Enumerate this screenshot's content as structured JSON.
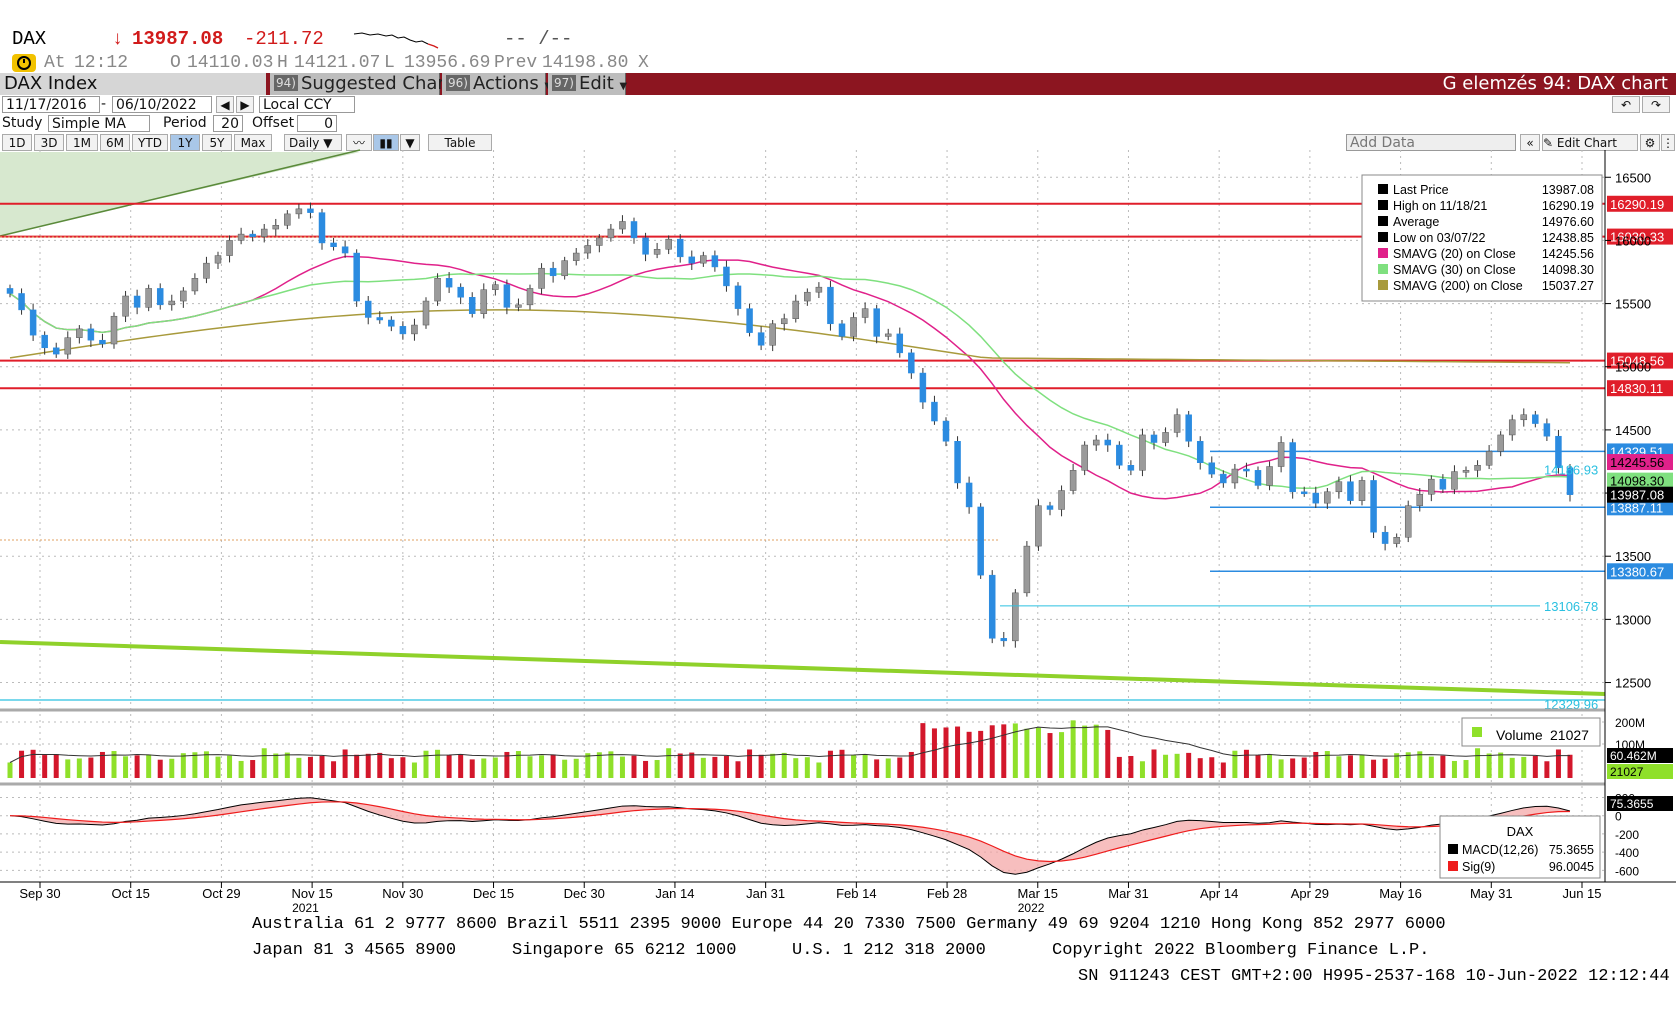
{
  "quote": {
    "ticker": "DAX",
    "arrow": "↓",
    "last": "13987.08",
    "change": "-211.72",
    "spark": "-- /--",
    "at_label": "At",
    "time": "12:12",
    "open_label": "O",
    "open": "14110.03",
    "high_label": "H",
    "high": "14121.07",
    "low_label": "L",
    "low": "13956.69",
    "prev_label": "Prev",
    "prev": "14198.80",
    "x": "X"
  },
  "toolbar": {
    "security": "DAX Index",
    "suggested_num": "94)",
    "suggested": "Suggested Charts",
    "actions_num": "96)",
    "actions": "Actions",
    "edit_num": "97)",
    "edit": "Edit",
    "title": "G elemzés 94: DAX chart"
  },
  "controls": {
    "start_date": "11/17/2016",
    "end_date": "06/10/2022",
    "currency": "Local CCY",
    "study_label": "Study",
    "study": "Simple MA",
    "period_label": "Period",
    "period": "20",
    "offset_label": "Offset",
    "offset": "0",
    "ranges": [
      "1D",
      "3D",
      "1M",
      "6M",
      "YTD",
      "1Y",
      "5Y",
      "Max"
    ],
    "selected_range": "1Y",
    "frequency": "Daily",
    "table": "Table",
    "add_data": "Add Data",
    "edit_chart": "Edit Chart"
  },
  "legend": {
    "rows": [
      {
        "label": "Last Price",
        "value": "13987.08",
        "color": "#000000"
      },
      {
        "label": "High on 11/18/21",
        "value": "16290.19",
        "color": "#000000"
      },
      {
        "label": "Average",
        "value": "14976.60",
        "color": "#000000"
      },
      {
        "label": "Low on 03/07/22",
        "value": "12438.85",
        "color": "#000000"
      },
      {
        "label": "SMAVG (20)  on Close",
        "value": "14245.56",
        "color": "#e0218a"
      },
      {
        "label": "SMAVG (30)  on Close",
        "value": "14098.30",
        "color": "#7fe07f"
      },
      {
        "label": "SMAVG (200)  on Close",
        "value": "15037.27",
        "color": "#a89a3c"
      }
    ]
  },
  "volume_legend": {
    "label": "Volume",
    "value": "21027"
  },
  "macd_legend": {
    "title": "DAX",
    "rows": [
      {
        "label": "MACD(12,26)",
        "value": "75.3655",
        "color": "#000000"
      },
      {
        "label": "Sig(9)",
        "value": "96.0045",
        "color": "#ee1c1c"
      }
    ]
  },
  "chart_data": {
    "type": "candlestick",
    "y_ticks": [
      "16500",
      "16000",
      "15500",
      "15000",
      "14500",
      "14000",
      "13500",
      "13000",
      "12500"
    ],
    "y_range": [
      12330,
      16700
    ],
    "x_ticks": [
      "Sep 30",
      "Oct 15",
      "Oct 29",
      "Nov 15",
      "Nov 30",
      "Dec 15",
      "Dec 30",
      "Jan 14",
      "Jan 31",
      "Feb 14",
      "Feb 28",
      "Mar 15",
      "Mar 31",
      "Apr 14",
      "Apr 29",
      "May 16",
      "May 31",
      "Jun 15"
    ],
    "year_labels": [
      {
        "text": "2021",
        "after": "Nov 15"
      },
      {
        "text": "2022",
        "after": "Mar 15"
      }
    ],
    "horizontal_levels": [
      {
        "label": "16290.19",
        "value": 16290.19,
        "color": "#e01e2a"
      },
      {
        "label": "16030.33",
        "value": 16030.33,
        "color": "#e01e2a"
      },
      {
        "label": "15048.56",
        "value": 15048.56,
        "color": "#e01e2a"
      },
      {
        "label": "14830.11",
        "value": 14830.11,
        "color": "#e01e2a"
      },
      {
        "label": "14329.51",
        "value": 14329.51,
        "color": "#2b8be0"
      },
      {
        "label": "13887.11",
        "value": 13887.11,
        "color": "#2b8be0"
      },
      {
        "label": "13380.67",
        "value": 13380.67,
        "color": "#2b8be0"
      }
    ],
    "right_markers": [
      {
        "label": "14245.56",
        "value": 14245.56,
        "color": "#e0218a"
      },
      {
        "label": "14098.30",
        "value": 14098.3,
        "color": "#7fe07f"
      },
      {
        "label": "13987.08",
        "value": 13987.08,
        "color": "#000000"
      }
    ],
    "annotations": [
      {
        "label": "14186.93",
        "value": 14186.93
      },
      {
        "label": "13106.78",
        "value": 13106.78
      },
      {
        "label": "12329.96",
        "value": 12329.96
      }
    ],
    "close_series": [
      15580,
      15450,
      15250,
      15150,
      15100,
      15230,
      15300,
      15210,
      15180,
      15400,
      15560,
      15470,
      15620,
      15490,
      15520,
      15600,
      15700,
      15820,
      15880,
      16000,
      16050,
      16030,
      16090,
      16120,
      16210,
      16250,
      16220,
      15980,
      15950,
      15900,
      15520,
      15390,
      15370,
      15320,
      15260,
      15330,
      15520,
      15700,
      15630,
      15550,
      15420,
      15610,
      15650,
      15470,
      15490,
      15620,
      15780,
      15720,
      15840,
      15900,
      15960,
      16020,
      16090,
      16150,
      16020,
      15890,
      15930,
      16010,
      15870,
      15820,
      15880,
      15790,
      15640,
      15460,
      15270,
      15170,
      15340,
      15380,
      15520,
      15590,
      15630,
      15340,
      15240,
      15390,
      15460,
      15240,
      15260,
      15110,
      14950,
      14720,
      14570,
      14410,
      14080,
      13890,
      13350,
      12850,
      12830,
      13210,
      13580,
      13900,
      13870,
      14020,
      14180,
      14380,
      14420,
      14380,
      14220,
      14180,
      14460,
      14400,
      14480,
      14620,
      14410,
      14240,
      14150,
      14080,
      14190,
      14180,
      14060,
      14210,
      14400,
      14010,
      14000,
      13920,
      14010,
      14090,
      13940,
      14100,
      13690,
      13600,
      13650,
      13900,
      13990,
      14110,
      14030,
      14170,
      14180,
      14220,
      14330,
      14460,
      14580,
      14620,
      14550,
      14450,
      14200,
      13987
    ],
    "volume": {
      "ticks": [
        "200M",
        "100M"
      ],
      "avg_label": "60.462M",
      "last_label": "21027"
    },
    "macd": {
      "ticks": [
        "200",
        "0",
        "-200",
        "-400",
        "-600"
      ],
      "macd_label": "75.3655"
    }
  },
  "footer": {
    "line1": "Australia 61 2 9777 8600 Brazil 5511 2395 9000 Europe 44 20 7330 7500 Germany 49 69 9204 1210 Hong Kong 852 2977 6000",
    "line2a": "Japan 81 3 4565 8900",
    "line2b": "Singapore 65 6212 1000",
    "line2c": "U.S. 1 212 318 2000",
    "line2d": "Copyright 2022 Bloomberg Finance L.P.",
    "line3": "SN 911243 CEST GMT+2:00 H995-2537-168 10-Jun-2022 12:12:44"
  }
}
